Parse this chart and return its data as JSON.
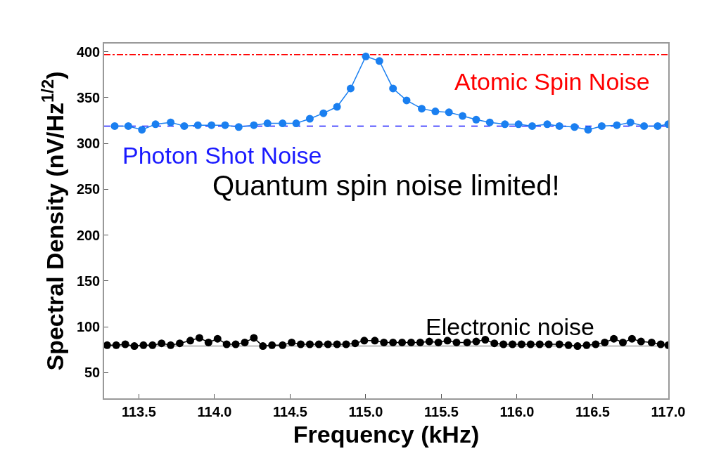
{
  "chart_data": {
    "type": "line",
    "xlabel": "Frequency (kHz)",
    "ylabel": "Spectral Density (nV/Hz$^{1/2}$)",
    "xlim": [
      113.27,
      117.0
    ],
    "xticks": [
      {
        "value": 113.5,
        "label": "113.5"
      },
      {
        "value": 114.0,
        "label": "114.0"
      },
      {
        "value": 114.5,
        "label": "114.5"
      },
      {
        "value": 115.0,
        "label": "115.0"
      },
      {
        "value": 115.5,
        "label": "115.5"
      },
      {
        "value": 116.0,
        "label": "116.0"
      },
      {
        "value": 116.5,
        "label": "116.5"
      },
      {
        "value": 117.0,
        "label": "117.0"
      }
    ],
    "ylim": [
      22,
      409
    ],
    "yticks": [
      50,
      100,
      150,
      200,
      250,
      300,
      350,
      400
    ],
    "grid": false,
    "marker": "circle",
    "series": [
      {
        "color": "#1a7ff0",
        "x": [
          113.34,
          113.43,
          113.52,
          113.61,
          113.71,
          113.8,
          113.89,
          113.98,
          114.07,
          114.16,
          114.26,
          114.35,
          114.45,
          114.54,
          114.63,
          114.72,
          114.81,
          114.9,
          115.0,
          115.09,
          115.18,
          115.27,
          115.37,
          115.46,
          115.55,
          115.64,
          115.73,
          115.82,
          115.92,
          116.01,
          116.1,
          116.2,
          116.28,
          116.38,
          116.47,
          116.56,
          116.66,
          116.75,
          116.84,
          116.93,
          117.0
        ],
        "values": [
          319,
          319,
          315,
          321,
          323,
          319,
          320,
          320,
          320,
          318,
          320,
          322,
          322,
          322,
          327,
          333,
          340,
          360,
          395,
          390,
          360,
          347,
          338,
          335,
          334,
          330,
          326,
          323,
          321,
          321,
          319,
          321,
          319,
          318,
          315,
          319,
          320,
          323,
          319,
          319,
          321
        ]
      },
      {
        "color": "#000000",
        "x": [
          113.29,
          113.35,
          113.41,
          113.47,
          113.53,
          113.59,
          113.65,
          113.71,
          113.77,
          113.84,
          113.9,
          113.96,
          114.02,
          114.08,
          114.14,
          114.2,
          114.26,
          114.32,
          114.38,
          114.45,
          114.51,
          114.57,
          114.63,
          114.69,
          114.75,
          114.81,
          114.87,
          114.93,
          114.99,
          115.06,
          115.12,
          115.18,
          115.24,
          115.3,
          115.36,
          115.42,
          115.48,
          115.54,
          115.6,
          115.67,
          115.73,
          115.79,
          115.85,
          115.91,
          115.97,
          116.03,
          116.09,
          116.15,
          116.21,
          116.28,
          116.34,
          116.4,
          116.46,
          116.52,
          116.58,
          116.64,
          116.7,
          116.76,
          116.82,
          116.89,
          116.95,
          117.0
        ],
        "values": [
          80,
          80,
          81,
          79,
          80,
          80,
          82,
          80,
          82,
          85,
          88,
          83,
          87,
          81,
          81,
          83,
          88,
          79,
          80,
          80,
          83,
          81,
          81,
          81,
          81,
          81,
          81,
          82,
          85,
          85,
          83,
          83,
          83,
          83,
          83,
          84,
          83,
          85,
          83,
          83,
          84,
          86,
          82,
          81,
          81,
          81,
          81,
          81,
          81,
          81,
          80,
          79,
          80,
          81,
          83,
          87,
          83,
          87,
          84,
          83,
          81,
          80
        ]
      }
    ],
    "ref_lines": [
      {
        "axis": "y",
        "value": 397,
        "label": "Atomic Spin Noise",
        "color": "#ff0000",
        "line_style": "dashdot"
      },
      {
        "axis": "y",
        "value": 319,
        "label": "Photon Shot Noise",
        "color": "#1a1aff",
        "line_style": "dashed"
      },
      {
        "axis": "y",
        "value": 79,
        "label": "Electronic noise",
        "color": "#a0a0a0",
        "line_style": "solid"
      }
    ],
    "annotations": [
      "Quantum spin noise limited!"
    ]
  }
}
